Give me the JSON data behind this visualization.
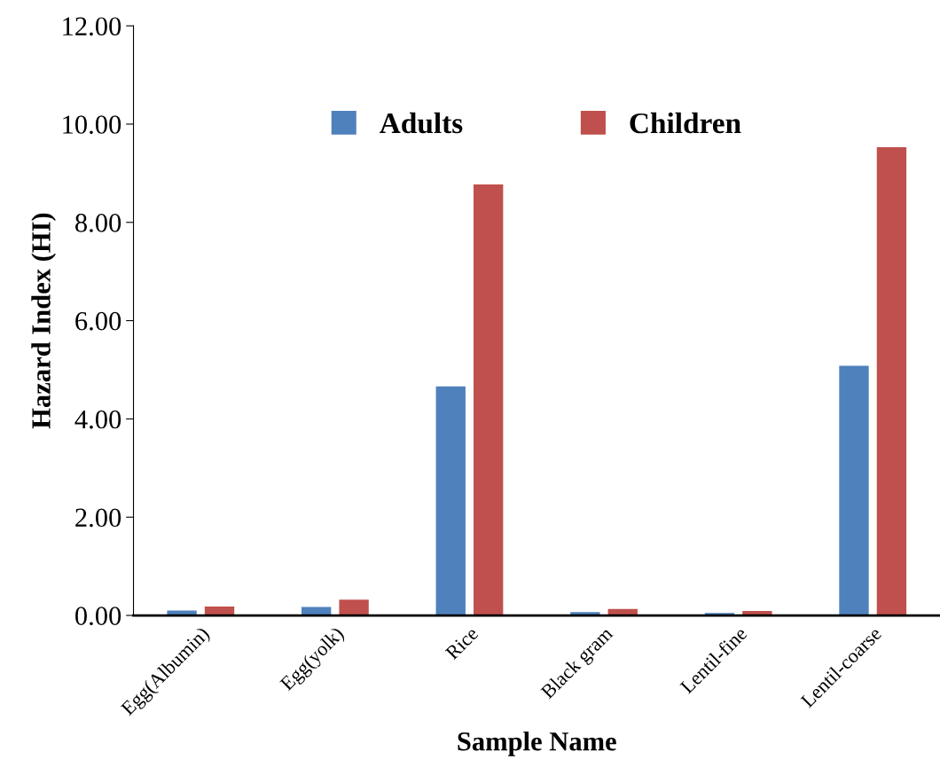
{
  "chart_data": {
    "type": "bar",
    "xlabel": "Sample Name",
    "ylabel": "Hazard Index (HI)",
    "categories": [
      "Egg(Albumin)",
      "Egg(yolk)",
      "Rice",
      "Black gram",
      "Lentil-fine",
      "Lentil-coarse"
    ],
    "series": [
      {
        "name": "Adults",
        "color": "#4f81bd",
        "values": [
          0.1,
          0.17,
          4.66,
          0.07,
          0.05,
          5.08
        ]
      },
      {
        "name": "Children",
        "color": "#c0504d",
        "values": [
          0.18,
          0.32,
          8.77,
          0.13,
          0.09,
          9.53
        ]
      }
    ],
    "ylim": [
      0,
      12
    ],
    "yticks": [
      {
        "value": 0,
        "label": "0.00"
      },
      {
        "value": 2,
        "label": "2.00"
      },
      {
        "value": 4,
        "label": "4.00"
      },
      {
        "value": 6,
        "label": "6.00"
      },
      {
        "value": 8,
        "label": "8.00"
      },
      {
        "value": 10,
        "label": "10.00"
      },
      {
        "value": 12,
        "label": "12.00"
      }
    ],
    "legend": "top",
    "grid": false
  }
}
